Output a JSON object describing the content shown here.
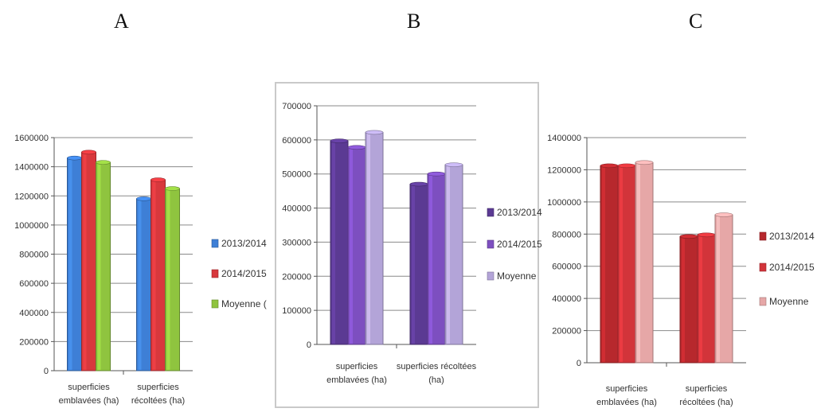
{
  "panels": [
    "A",
    "B",
    "C"
  ],
  "chart_data": [
    {
      "type": "bar",
      "panel": "A",
      "categories": [
        [
          "superficies",
          "emblavées (ha)"
        ],
        [
          "superficies",
          "récoltées (ha)"
        ]
      ],
      "series": [
        {
          "name": "2013/2014",
          "values": [
            1460000,
            1180000
          ],
          "color": "#3e7fd6"
        },
        {
          "name": "2014/2015",
          "values": [
            1500000,
            1310000
          ],
          "color": "#d8383d"
        },
        {
          "name": "Moyenne (",
          "values": [
            1430000,
            1250000
          ],
          "color": "#8fc43f"
        }
      ],
      "ylim": [
        0,
        1600000
      ],
      "yticks": [
        "0",
        "200000",
        "400000",
        "600000",
        "800000",
        "1000000",
        "1200000",
        "1400000",
        "1600000"
      ],
      "grid": true,
      "legend": "right"
    },
    {
      "type": "bar",
      "panel": "B",
      "categories": [
        [
          "superficies",
          "emblavées (ha)"
        ],
        [
          "superficies récoltées",
          "(ha)"
        ]
      ],
      "series": [
        {
          "name": "2013/2014",
          "values": [
            597000,
            470000
          ],
          "color": "#5b3a93"
        },
        {
          "name": "2014/2015",
          "values": [
            578000,
            500000
          ],
          "color": "#7d4fc0"
        },
        {
          "name": "Moyenne",
          "values": [
            622000,
            527000
          ],
          "color": "#b3a4d8"
        }
      ],
      "ylim": [
        0,
        700000
      ],
      "yticks": [
        "0",
        "100000",
        "200000",
        "300000",
        "400000",
        "500000",
        "600000",
        "700000"
      ],
      "grid": true,
      "legend": "right"
    },
    {
      "type": "bar",
      "panel": "C",
      "categories": [
        [
          "superficies",
          "emblavées (ha)"
        ],
        [
          "superficies",
          "récoltées (ha)"
        ]
      ],
      "series": [
        {
          "name": "2013/2014",
          "values": [
            1225000,
            785000
          ],
          "color": "#b7282d"
        },
        {
          "name": "2014/2015",
          "values": [
            1225000,
            795000
          ],
          "color": "#d2343a"
        },
        {
          "name": "Moyenne",
          "values": [
            1245000,
            920000
          ],
          "color": "#e6a7a7"
        }
      ],
      "ylim": [
        0,
        1400000
      ],
      "yticks": [
        "0",
        "200000",
        "400000",
        "600000",
        "800000",
        "1000000",
        "1200000",
        "1400000"
      ],
      "grid": true,
      "legend": "right"
    }
  ]
}
